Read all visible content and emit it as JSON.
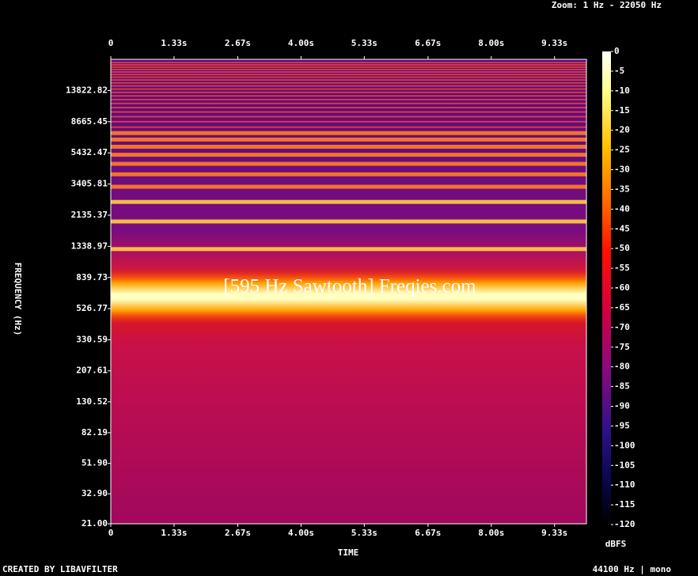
{
  "chart_data": {
    "type": "spectrogram",
    "header": "Zoom: 1 Hz - 22050 Hz",
    "title": "[595 Hz Sawtooth] Freqies.com",
    "xlabel": "TIME",
    "ylabel": "FREQUENCY (Hz)",
    "colorbar_label": "dBFS",
    "footer_left": "CREATED BY LIBAVFILTER",
    "footer_right": "44100 Hz | mono",
    "xlim": [
      0,
      10
    ],
    "xticks": [
      0,
      {
        "value": 1.33,
        "label": "1.33s"
      },
      {
        "value": 2.67,
        "label": "2.67s"
      },
      {
        "value": 4.0,
        "label": "4.00s"
      },
      {
        "value": 5.33,
        "label": "5.33s"
      },
      {
        "value": 6.67,
        "label": "6.67s"
      },
      {
        "value": 8.0,
        "label": "8.00s"
      },
      {
        "value": 9.33,
        "label": "9.33s"
      }
    ],
    "ylim": [
      21,
      22050
    ],
    "log_y": true,
    "yticks": [
      {
        "value": 21,
        "label": "21.00"
      },
      {
        "value": 32.9,
        "label": "32.90"
      },
      {
        "value": 51.9,
        "label": "51.90"
      },
      82.19,
      130.52,
      207.61,
      330.59,
      526.77,
      839.73,
      1338.97,
      2135.37,
      3405.81,
      5432.47,
      8665.45,
      13822.82
    ],
    "clim": [
      -120,
      0
    ],
    "cticks": [
      0,
      -5,
      -10,
      -15,
      -20,
      -25,
      -30,
      -35,
      -40,
      -45,
      -50,
      -55,
      -60,
      -65,
      -70,
      -75,
      -80,
      -85,
      -90,
      -95,
      -100,
      -105,
      -110,
      -115,
      -120
    ]
  }
}
